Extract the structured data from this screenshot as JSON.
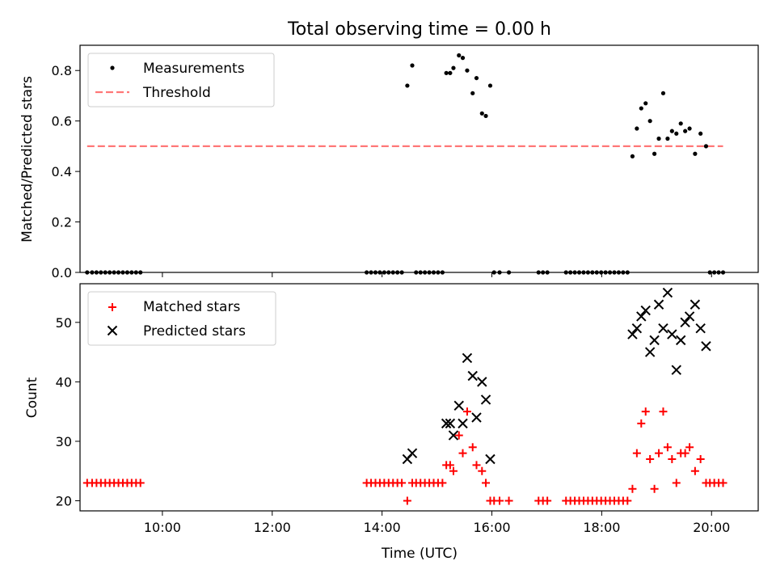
{
  "chart_data": [
    {
      "type": "scatter",
      "title": "Total observing time = 0.00 h",
      "xlabel": "",
      "ylabel": "Matched/Predicted stars",
      "ylim": [
        0,
        0.9
      ],
      "xlim": [
        8.5,
        20.85
      ],
      "yticks": [
        0.0,
        0.2,
        0.4,
        0.6,
        0.8
      ],
      "ytick_labels": [
        "0.0",
        "0.2",
        "0.4",
        "0.6",
        "0.8"
      ],
      "legend_position": "top-left",
      "series": [
        {
          "name": "Measurements",
          "color": "#000000",
          "marker": "dot",
          "points": [
            [
              8.63,
              0
            ],
            [
              8.72,
              0
            ],
            [
              8.8,
              0
            ],
            [
              8.88,
              0
            ],
            [
              8.96,
              0
            ],
            [
              9.04,
              0
            ],
            [
              9.12,
              0
            ],
            [
              9.2,
              0
            ],
            [
              9.28,
              0
            ],
            [
              9.36,
              0
            ],
            [
              9.44,
              0
            ],
            [
              9.52,
              0
            ],
            [
              9.6,
              0
            ],
            [
              13.72,
              0
            ],
            [
              13.8,
              0
            ],
            [
              13.88,
              0
            ],
            [
              13.96,
              0
            ],
            [
              14.04,
              0
            ],
            [
              14.12,
              0
            ],
            [
              14.2,
              0
            ],
            [
              14.28,
              0
            ],
            [
              14.36,
              0
            ],
            [
              14.46,
              0.74
            ],
            [
              14.55,
              0.82
            ],
            [
              14.62,
              0
            ],
            [
              14.7,
              0
            ],
            [
              14.78,
              0
            ],
            [
              14.86,
              0
            ],
            [
              14.94,
              0
            ],
            [
              15.02,
              0
            ],
            [
              15.1,
              0
            ],
            [
              15.17,
              0.79
            ],
            [
              15.24,
              0.79
            ],
            [
              15.3,
              0.81
            ],
            [
              15.4,
              0.86
            ],
            [
              15.47,
              0.85
            ],
            [
              15.55,
              0.8
            ],
            [
              15.65,
              0.71
            ],
            [
              15.72,
              0.77
            ],
            [
              15.82,
              0.63
            ],
            [
              15.89,
              0.62
            ],
            [
              15.97,
              0.74
            ],
            [
              16.04,
              0
            ],
            [
              16.14,
              0
            ],
            [
              16.31,
              0
            ],
            [
              16.85,
              0
            ],
            [
              16.93,
              0
            ],
            [
              17.01,
              0
            ],
            [
              17.35,
              0
            ],
            [
              17.43,
              0
            ],
            [
              17.51,
              0
            ],
            [
              17.59,
              0
            ],
            [
              17.67,
              0
            ],
            [
              17.75,
              0
            ],
            [
              17.83,
              0
            ],
            [
              17.91,
              0
            ],
            [
              17.99,
              0
            ],
            [
              18.07,
              0
            ],
            [
              18.15,
              0
            ],
            [
              18.23,
              0
            ],
            [
              18.31,
              0
            ],
            [
              18.39,
              0
            ],
            [
              18.47,
              0
            ],
            [
              18.56,
              0.46
            ],
            [
              18.64,
              0.57
            ],
            [
              18.72,
              0.65
            ],
            [
              18.8,
              0.67
            ],
            [
              18.88,
              0.6
            ],
            [
              18.96,
              0.47
            ],
            [
              19.04,
              0.53
            ],
            [
              19.12,
              0.71
            ],
            [
              19.2,
              0.53
            ],
            [
              19.28,
              0.56
            ],
            [
              19.36,
              0.55
            ],
            [
              19.44,
              0.59
            ],
            [
              19.52,
              0.56
            ],
            [
              19.6,
              0.57
            ],
            [
              19.7,
              0.47
            ],
            [
              19.8,
              0.55
            ],
            [
              19.9,
              0.5
            ],
            [
              19.97,
              0
            ],
            [
              20.05,
              0
            ],
            [
              20.13,
              0
            ],
            [
              20.21,
              0
            ]
          ]
        },
        {
          "name": "Threshold",
          "color": "#ff7777",
          "style": "dashed",
          "x": [
            8.63,
            20.21
          ],
          "y": [
            0.5,
            0.5
          ]
        }
      ]
    },
    {
      "type": "scatter",
      "title": "",
      "xlabel": "Time (UTC)",
      "ylabel": "Count",
      "ylim": [
        18.3,
        56.5
      ],
      "xlim": [
        8.5,
        20.85
      ],
      "xticks": [
        10,
        12,
        14,
        16,
        18,
        20
      ],
      "xtick_labels": [
        "10:00",
        "12:00",
        "14:00",
        "16:00",
        "18:00",
        "20:00"
      ],
      "yticks": [
        20,
        30,
        40,
        50
      ],
      "ytick_labels": [
        "20",
        "30",
        "40",
        "50"
      ],
      "legend_position": "top-left",
      "series": [
        {
          "name": "Matched stars",
          "color": "#ff0000",
          "marker": "plus",
          "points": [
            [
              8.63,
              23
            ],
            [
              8.72,
              23
            ],
            [
              8.8,
              23
            ],
            [
              8.88,
              23
            ],
            [
              8.96,
              23
            ],
            [
              9.04,
              23
            ],
            [
              9.12,
              23
            ],
            [
              9.2,
              23
            ],
            [
              9.28,
              23
            ],
            [
              9.36,
              23
            ],
            [
              9.44,
              23
            ],
            [
              9.52,
              23
            ],
            [
              9.6,
              23
            ],
            [
              13.72,
              23
            ],
            [
              13.8,
              23
            ],
            [
              13.88,
              23
            ],
            [
              13.96,
              23
            ],
            [
              14.04,
              23
            ],
            [
              14.12,
              23
            ],
            [
              14.2,
              23
            ],
            [
              14.28,
              23
            ],
            [
              14.36,
              23
            ],
            [
              14.46,
              20
            ],
            [
              14.55,
              23
            ],
            [
              14.62,
              23
            ],
            [
              14.7,
              23
            ],
            [
              14.78,
              23
            ],
            [
              14.86,
              23
            ],
            [
              14.94,
              23
            ],
            [
              15.02,
              23
            ],
            [
              15.1,
              23
            ],
            [
              15.17,
              26
            ],
            [
              15.24,
              26
            ],
            [
              15.3,
              25
            ],
            [
              15.4,
              31
            ],
            [
              15.47,
              28
            ],
            [
              15.55,
              35
            ],
            [
              15.65,
              29
            ],
            [
              15.72,
              26
            ],
            [
              15.82,
              25
            ],
            [
              15.89,
              23
            ],
            [
              15.97,
              20
            ],
            [
              16.04,
              20
            ],
            [
              16.14,
              20
            ],
            [
              16.31,
              20
            ],
            [
              16.85,
              20
            ],
            [
              16.93,
              20
            ],
            [
              17.01,
              20
            ],
            [
              17.35,
              20
            ],
            [
              17.43,
              20
            ],
            [
              17.51,
              20
            ],
            [
              17.59,
              20
            ],
            [
              17.67,
              20
            ],
            [
              17.75,
              20
            ],
            [
              17.83,
              20
            ],
            [
              17.91,
              20
            ],
            [
              17.99,
              20
            ],
            [
              18.07,
              20
            ],
            [
              18.15,
              20
            ],
            [
              18.23,
              20
            ],
            [
              18.31,
              20
            ],
            [
              18.39,
              20
            ],
            [
              18.47,
              20
            ],
            [
              18.56,
              22
            ],
            [
              18.64,
              28
            ],
            [
              18.72,
              33
            ],
            [
              18.8,
              35
            ],
            [
              18.88,
              27
            ],
            [
              18.96,
              22
            ],
            [
              19.04,
              28
            ],
            [
              19.12,
              35
            ],
            [
              19.2,
              29
            ],
            [
              19.28,
              27
            ],
            [
              19.36,
              23
            ],
            [
              19.44,
              28
            ],
            [
              19.52,
              28
            ],
            [
              19.6,
              29
            ],
            [
              19.7,
              25
            ],
            [
              19.8,
              27
            ],
            [
              19.9,
              23
            ],
            [
              19.97,
              23
            ],
            [
              20.05,
              23
            ],
            [
              20.13,
              23
            ],
            [
              20.21,
              23
            ]
          ]
        },
        {
          "name": "Predicted stars",
          "color": "#000000",
          "marker": "x",
          "points": [
            [
              14.46,
              27
            ],
            [
              14.55,
              28
            ],
            [
              15.17,
              33
            ],
            [
              15.24,
              33
            ],
            [
              15.3,
              31
            ],
            [
              15.4,
              36
            ],
            [
              15.47,
              33
            ],
            [
              15.55,
              44
            ],
            [
              15.65,
              41
            ],
            [
              15.72,
              34
            ],
            [
              15.82,
              40
            ],
            [
              15.89,
              37
            ],
            [
              15.97,
              27
            ],
            [
              18.56,
              48
            ],
            [
              18.64,
              49
            ],
            [
              18.72,
              51
            ],
            [
              18.8,
              52
            ],
            [
              18.88,
              45
            ],
            [
              18.96,
              47
            ],
            [
              19.04,
              53
            ],
            [
              19.12,
              49
            ],
            [
              19.2,
              55
            ],
            [
              19.28,
              48
            ],
            [
              19.36,
              42
            ],
            [
              19.44,
              47
            ],
            [
              19.52,
              50
            ],
            [
              19.6,
              51
            ],
            [
              19.7,
              53
            ],
            [
              19.8,
              49
            ],
            [
              19.9,
              46
            ]
          ]
        }
      ]
    }
  ]
}
